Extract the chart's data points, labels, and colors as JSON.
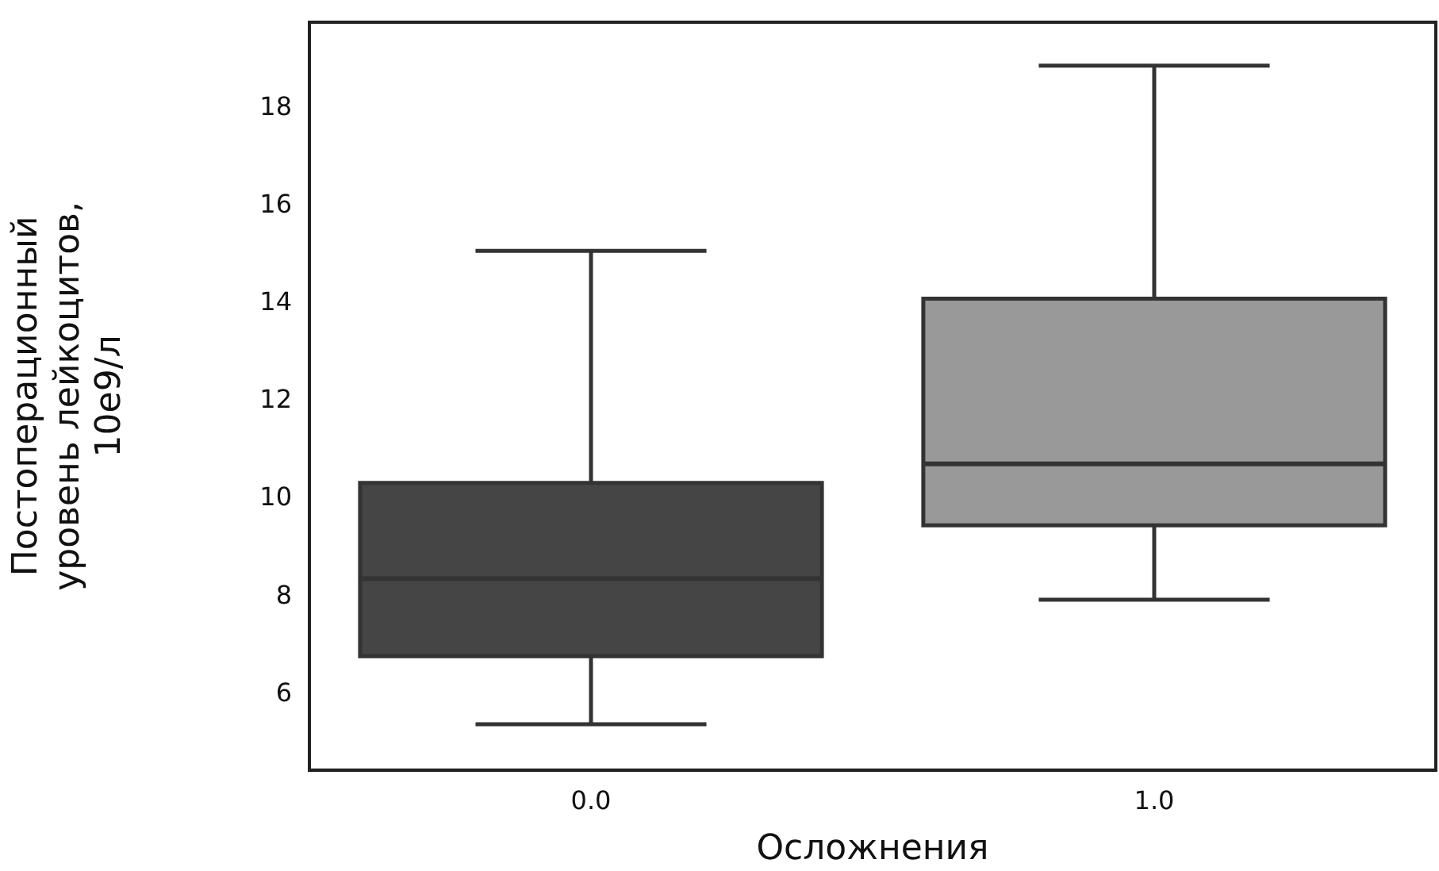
{
  "chart_data": {
    "type": "box",
    "xlabel": "Осложнения",
    "ylabel": "Постоперационный\nуровень лейкоцитов,\n10e9/л",
    "categories": [
      "0.0",
      "1.0"
    ],
    "colors": [
      "#454545",
      "#999999"
    ],
    "boxes": [
      {
        "low": 5.39,
        "q1": 6.78,
        "median": 8.37,
        "q3": 10.33,
        "high": 15.08
      },
      {
        "low": 7.94,
        "q1": 9.46,
        "median": 10.72,
        "q3": 14.1,
        "high": 18.87
      }
    ],
    "ylim": [
      4.45,
      19.76
    ],
    "yticks": [
      6,
      8,
      10,
      12,
      14,
      16,
      18
    ],
    "grid": false,
    "legend": false
  }
}
